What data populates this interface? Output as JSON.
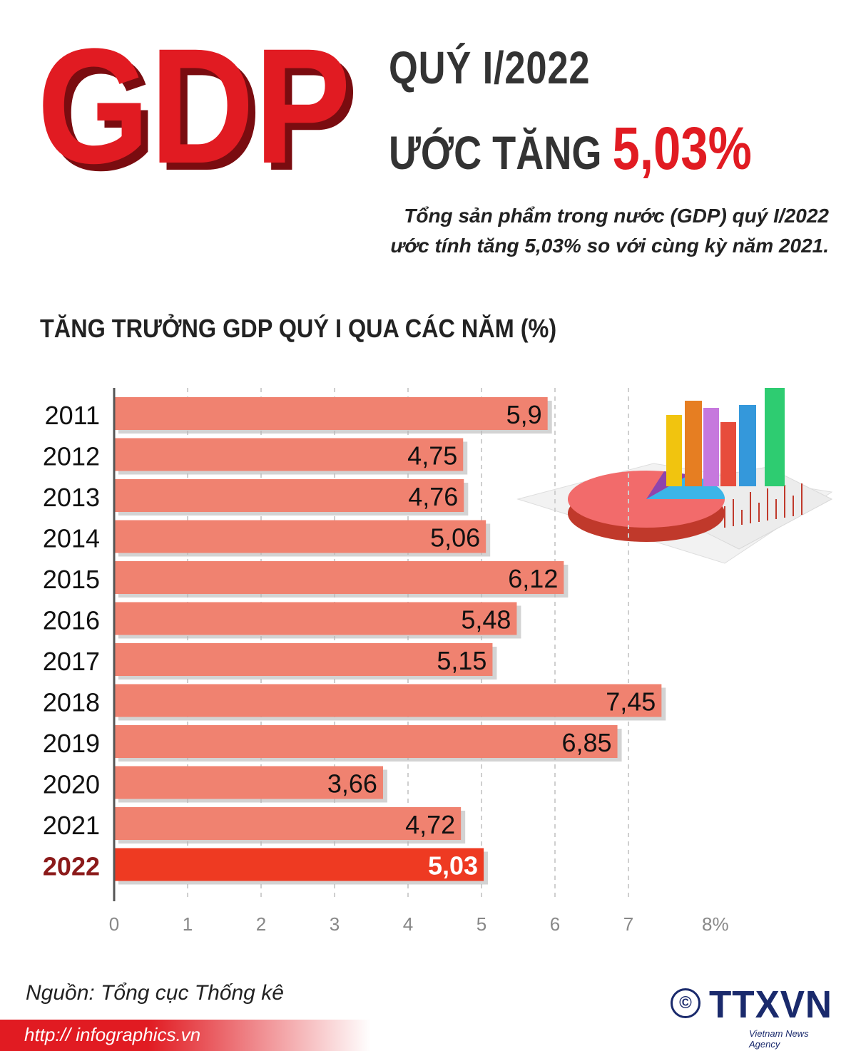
{
  "header": {
    "logo_text": "GDP",
    "title_line1": "QUÝ I/2022",
    "title_line2_prefix": "ƯỚC TĂNG",
    "title_highlight": "5,03%",
    "subtitle_line1": "Tổng sản phẩm trong nước (GDP) quý I/2022",
    "subtitle_line2": "ước tính tăng 5,03% so với cùng kỳ năm 2021."
  },
  "chart_data": {
    "type": "bar",
    "orientation": "horizontal",
    "title": "TĂNG TRƯỞNG GDP QUÝ I QUA CÁC NĂM (%)",
    "categories": [
      "2011",
      "2012",
      "2013",
      "2014",
      "2015",
      "2016",
      "2017",
      "2018",
      "2019",
      "2020",
      "2021",
      "2022"
    ],
    "values": [
      5.9,
      4.75,
      4.76,
      5.06,
      6.12,
      5.48,
      5.15,
      7.45,
      6.85,
      3.66,
      4.72,
      5.03
    ],
    "value_labels": [
      "5,9",
      "4,75",
      "4,76",
      "5,06",
      "6,12",
      "5,48",
      "5,15",
      "7,45",
      "6,85",
      "3,66",
      "4,72",
      "5,03"
    ],
    "x_ticks": [
      "0",
      "1",
      "2",
      "3",
      "4",
      "5",
      "6",
      "7",
      "8%"
    ],
    "xlim": [
      0,
      8
    ],
    "highlight_category": "2022",
    "grid": "vertical dashed",
    "colors": {
      "bar": "#f08270",
      "highlight_bar": "#ee3a22",
      "highlight_label": "#8b1a1a",
      "axis": "#555555"
    }
  },
  "footer": {
    "source": "Nguồn: Tổng cục Thống kê",
    "url": "http:// infographics.vn",
    "agency": "TTXVN",
    "agency_sub": "Vietnam News Agency",
    "copyright": "©"
  },
  "colors": {
    "accent": "#e11b22",
    "agency": "#1a2a6c"
  }
}
